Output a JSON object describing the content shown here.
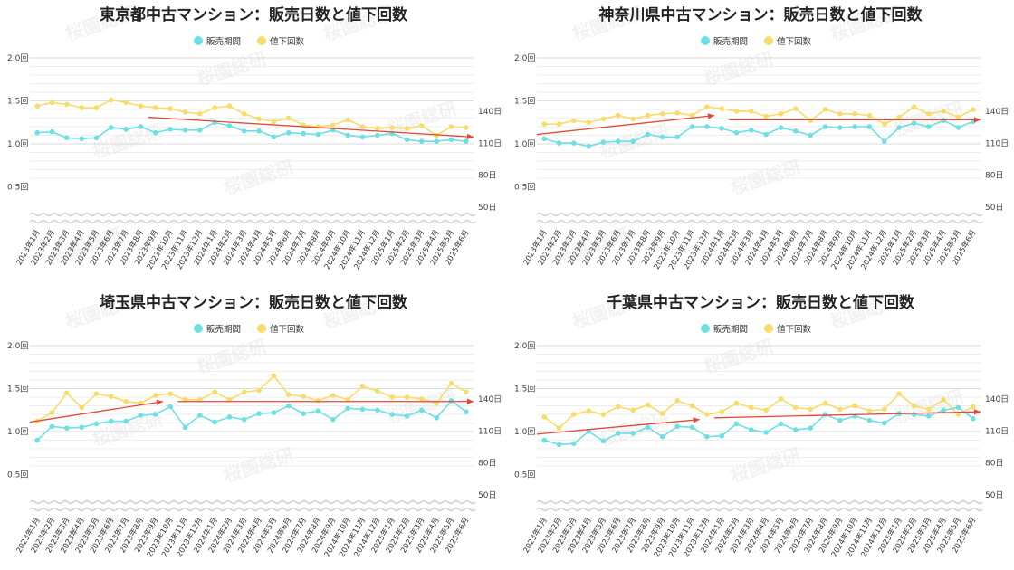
{
  "legend": {
    "duration_label": "販売期間",
    "reductions_label": "値下回数"
  },
  "colors": {
    "duration": "#6ee0e3",
    "reductions": "#f8dc6a",
    "trend": "#e04a3b",
    "grid": "#dddddd",
    "wave": "#d4d4d4"
  },
  "watermark": "桜園総研",
  "chart_data": [
    {
      "title": "東京都中古マンション：販売日数と値下回数",
      "type": "line",
      "x": [
        "2023年1月",
        "2023年2月",
        "2023年3月",
        "2023年4月",
        "2023年5月",
        "2023年6月",
        "2023年7月",
        "2023年8月",
        "2023年9月",
        "2023年10月",
        "2023年11月",
        "2023年12月",
        "2024年1月",
        "2024年2月",
        "2024年3月",
        "2024年4月",
        "2024年5月",
        "2024年6月",
        "2024年7月",
        "2024年8月",
        "2024年9月",
        "2024年10月",
        "2024年11月",
        "2024年12月",
        "2025年1月",
        "2025年2月",
        "2025年3月",
        "2025年4月",
        "2025年5月",
        "2025年6月"
      ],
      "left_axis": {
        "ticks": [
          "2.0回",
          "1.5回",
          "1.0回",
          "0.5回"
        ],
        "tick_values": [
          2.0,
          1.5,
          1.0,
          0.5
        ],
        "ylim": [
          0.0,
          2.0
        ]
      },
      "right_axis": {
        "ticks": [
          "140日",
          "110日",
          "80日",
          "50日"
        ],
        "tick_values": [
          140,
          110,
          80,
          50
        ],
        "ylim": [
          50,
          140
        ]
      },
      "series": [
        {
          "name": "値下回数",
          "axis": "left",
          "values": [
            1.44,
            1.48,
            1.46,
            1.42,
            1.42,
            1.51,
            1.48,
            1.44,
            1.42,
            1.41,
            1.37,
            1.35,
            1.42,
            1.44,
            1.35,
            1.29,
            1.26,
            1.3,
            1.22,
            1.2,
            1.22,
            1.28,
            1.2,
            1.18,
            1.19,
            1.18,
            1.21,
            1.1,
            1.2,
            1.19
          ]
        },
        {
          "name": "販売期間",
          "axis": "left",
          "values": [
            1.13,
            1.14,
            1.07,
            1.06,
            1.07,
            1.19,
            1.17,
            1.2,
            1.13,
            1.17,
            1.16,
            1.16,
            1.25,
            1.21,
            1.15,
            1.15,
            1.08,
            1.13,
            1.12,
            1.11,
            1.16,
            1.1,
            1.08,
            1.1,
            1.12,
            1.05,
            1.03,
            1.03,
            1.05,
            1.03
          ]
        }
      ],
      "trend_lines": [
        {
          "from": [
            7.5,
            1.31
          ],
          "to": [
            29.5,
            1.08
          ]
        }
      ]
    },
    {
      "title": "神奈川県中古マンション：販売日数と値下回数",
      "type": "line",
      "x": [
        "2023年1月",
        "2023年2月",
        "2023年3月",
        "2023年4月",
        "2023年5月",
        "2023年6月",
        "2023年7月",
        "2023年8月",
        "2023年9月",
        "2023年10月",
        "2023年11月",
        "2023年12月",
        "2024年1月",
        "2024年2月",
        "2024年3月",
        "2024年4月",
        "2024年5月",
        "2024年6月",
        "2024年7月",
        "2024年8月",
        "2024年9月",
        "2024年10月",
        "2024年11月",
        "2024年12月",
        "2025年1月",
        "2025年2月",
        "2025年3月",
        "2025年4月",
        "2025年5月",
        "2025年6月"
      ],
      "left_axis": {
        "ticks": [
          "2.0回",
          "1.5回",
          "1.0回",
          "0.5回"
        ],
        "tick_values": [
          2.0,
          1.5,
          1.0,
          0.5
        ],
        "ylim": [
          0.0,
          2.0
        ]
      },
      "right_axis": {
        "ticks": [
          "140日",
          "110日",
          "80日",
          "50日"
        ],
        "tick_values": [
          140,
          110,
          80,
          50
        ],
        "ylim": [
          50,
          140
        ]
      },
      "series": [
        {
          "name": "値下回数",
          "axis": "left",
          "values": [
            1.23,
            1.23,
            1.27,
            1.25,
            1.29,
            1.33,
            1.29,
            1.33,
            1.35,
            1.36,
            1.33,
            1.43,
            1.41,
            1.38,
            1.38,
            1.32,
            1.35,
            1.41,
            1.27,
            1.4,
            1.35,
            1.35,
            1.33,
            1.23,
            1.31,
            1.43,
            1.35,
            1.38,
            1.31,
            1.4
          ]
        },
        {
          "name": "販売期間",
          "axis": "left",
          "values": [
            1.06,
            1.01,
            1.01,
            0.97,
            1.02,
            1.03,
            1.03,
            1.11,
            1.08,
            1.08,
            1.2,
            1.2,
            1.18,
            1.13,
            1.16,
            1.11,
            1.19,
            1.15,
            1.1,
            1.2,
            1.19,
            1.2,
            1.2,
            1.03,
            1.19,
            1.24,
            1.2,
            1.27,
            1.19,
            1.26
          ]
        }
      ],
      "trend_lines": [
        {
          "from": [
            -0.5,
            1.11
          ],
          "to": [
            11.5,
            1.33
          ]
        },
        {
          "from": [
            12.5,
            1.28
          ],
          "to": [
            29.5,
            1.28
          ]
        }
      ]
    },
    {
      "title": "埼玉県中古マンション：販売日数と値下回数",
      "type": "line",
      "x": [
        "2023年1月",
        "2023年2月",
        "2023年3月",
        "2023年4月",
        "2023年5月",
        "2023年6月",
        "2023年7月",
        "2023年8月",
        "2023年9月",
        "2023年10月",
        "2023年11月",
        "2023年12月",
        "2024年1月",
        "2024年2月",
        "2024年3月",
        "2024年4月",
        "2024年5月",
        "2024年6月",
        "2024年7月",
        "2024年8月",
        "2024年9月",
        "2024年10月",
        "2024年11月",
        "2024年12月",
        "2025年1月",
        "2025年2月",
        "2025年3月",
        "2025年4月",
        "2025年5月",
        "2025年6月"
      ],
      "left_axis": {
        "ticks": [
          "2.0回",
          "1.5回",
          "1.0回",
          "0.5回"
        ],
        "tick_values": [
          2.0,
          1.5,
          1.0,
          0.5
        ],
        "ylim": [
          0.0,
          2.0
        ]
      },
      "right_axis": {
        "ticks": [
          "140日",
          "110日",
          "80日",
          "50日"
        ],
        "tick_values": [
          140,
          110,
          80,
          50
        ],
        "ylim": [
          50,
          140
        ]
      },
      "series": [
        {
          "name": "値下回数",
          "axis": "left",
          "values": [
            1.12,
            1.22,
            1.45,
            1.28,
            1.44,
            1.41,
            1.35,
            1.33,
            1.42,
            1.44,
            1.37,
            1.37,
            1.46,
            1.37,
            1.46,
            1.48,
            1.65,
            1.43,
            1.41,
            1.36,
            1.42,
            1.37,
            1.53,
            1.47,
            1.4,
            1.4,
            1.38,
            1.33,
            1.56,
            1.46
          ]
        },
        {
          "name": "販売期間",
          "axis": "left",
          "values": [
            0.9,
            1.06,
            1.04,
            1.05,
            1.09,
            1.12,
            1.12,
            1.19,
            1.2,
            1.29,
            1.05,
            1.19,
            1.11,
            1.17,
            1.14,
            1.21,
            1.22,
            1.3,
            1.21,
            1.24,
            1.14,
            1.27,
            1.26,
            1.25,
            1.2,
            1.18,
            1.25,
            1.16,
            1.36,
            1.23
          ]
        }
      ],
      "trend_lines": [
        {
          "from": [
            -0.5,
            1.11
          ],
          "to": [
            8.5,
            1.35
          ]
        },
        {
          "from": [
            9.5,
            1.35
          ],
          "to": [
            29.5,
            1.35
          ]
        }
      ]
    },
    {
      "title": "千葉県中古マンション：販売日数と値下回数",
      "type": "line",
      "x": [
        "2023年1月",
        "2023年2月",
        "2023年3月",
        "2023年4月",
        "2023年5月",
        "2023年6月",
        "2023年7月",
        "2023年8月",
        "2023年9月",
        "2023年10月",
        "2023年11月",
        "2023年12月",
        "2024年1月",
        "2024年2月",
        "2024年3月",
        "2024年4月",
        "2024年5月",
        "2024年6月",
        "2024年7月",
        "2024年8月",
        "2024年9月",
        "2024年10月",
        "2024年11月",
        "2024年12月",
        "2025年1月",
        "2025年2月",
        "2025年3月",
        "2025年4月",
        "2025年5月",
        "2025年6月"
      ],
      "left_axis": {
        "ticks": [
          "2.0回",
          "1.5回",
          "1.0回",
          "0.5回"
        ],
        "tick_values": [
          2.0,
          1.5,
          1.0,
          0.5
        ],
        "ylim": [
          0.0,
          2.0
        ]
      },
      "right_axis": {
        "ticks": [
          "140日",
          "110日",
          "80日",
          "50日"
        ],
        "tick_values": [
          140,
          110,
          80,
          50
        ],
        "ylim": [
          50,
          140
        ]
      },
      "series": [
        {
          "name": "値下回数",
          "axis": "left",
          "values": [
            1.17,
            1.04,
            1.2,
            1.24,
            1.2,
            1.29,
            1.25,
            1.31,
            1.21,
            1.36,
            1.3,
            1.2,
            1.23,
            1.33,
            1.28,
            1.25,
            1.38,
            1.28,
            1.26,
            1.33,
            1.26,
            1.3,
            1.24,
            1.26,
            1.44,
            1.3,
            1.26,
            1.37,
            1.2,
            1.29
          ]
        },
        {
          "name": "販売期間",
          "axis": "left",
          "values": [
            0.9,
            0.85,
            0.86,
            1.0,
            0.89,
            0.98,
            0.98,
            1.05,
            0.94,
            1.06,
            1.05,
            0.94,
            0.95,
            1.09,
            1.02,
            0.99,
            1.09,
            1.02,
            1.04,
            1.2,
            1.13,
            1.18,
            1.13,
            1.1,
            1.21,
            1.2,
            1.18,
            1.25,
            1.28,
            1.15
          ]
        }
      ],
      "trend_lines": [
        {
          "from": [
            -0.5,
            0.97
          ],
          "to": [
            10.5,
            1.14
          ]
        },
        {
          "from": [
            11.5,
            1.16
          ],
          "to": [
            29.5,
            1.23
          ]
        }
      ]
    }
  ]
}
